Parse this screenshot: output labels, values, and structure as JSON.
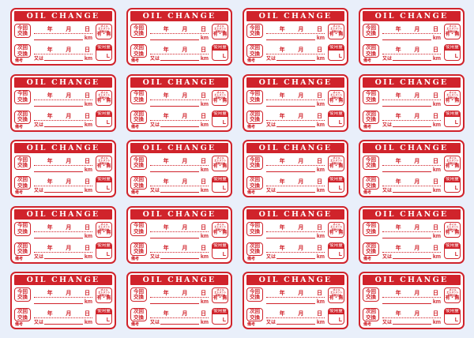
{
  "page": {
    "background_color": "#e9effa",
    "accent_red": "#d0232b",
    "sticker_background": "#ffffff"
  },
  "grid": {
    "columns": 4,
    "rows": 5,
    "count": 20
  },
  "sticker": {
    "title": "OIL CHANGE",
    "row1": {
      "left_label_line1": "今回",
      "left_label_line2": "交換",
      "date_labels": [
        "年",
        "月",
        "日"
      ],
      "km_label": "km",
      "right_box": {
        "lines": [
          "オイル",
          "エレメント",
          "同時交換"
        ],
        "choice": "有・無"
      }
    },
    "row2": {
      "left_label_line1": "次回",
      "left_label_line2": "交換",
      "date_labels": [
        "年",
        "月",
        "日"
      ],
      "or_label": "又は",
      "km_label": "km",
      "note_label": "備考",
      "right_box": {
        "header": "使用量",
        "unit": "L"
      }
    }
  }
}
